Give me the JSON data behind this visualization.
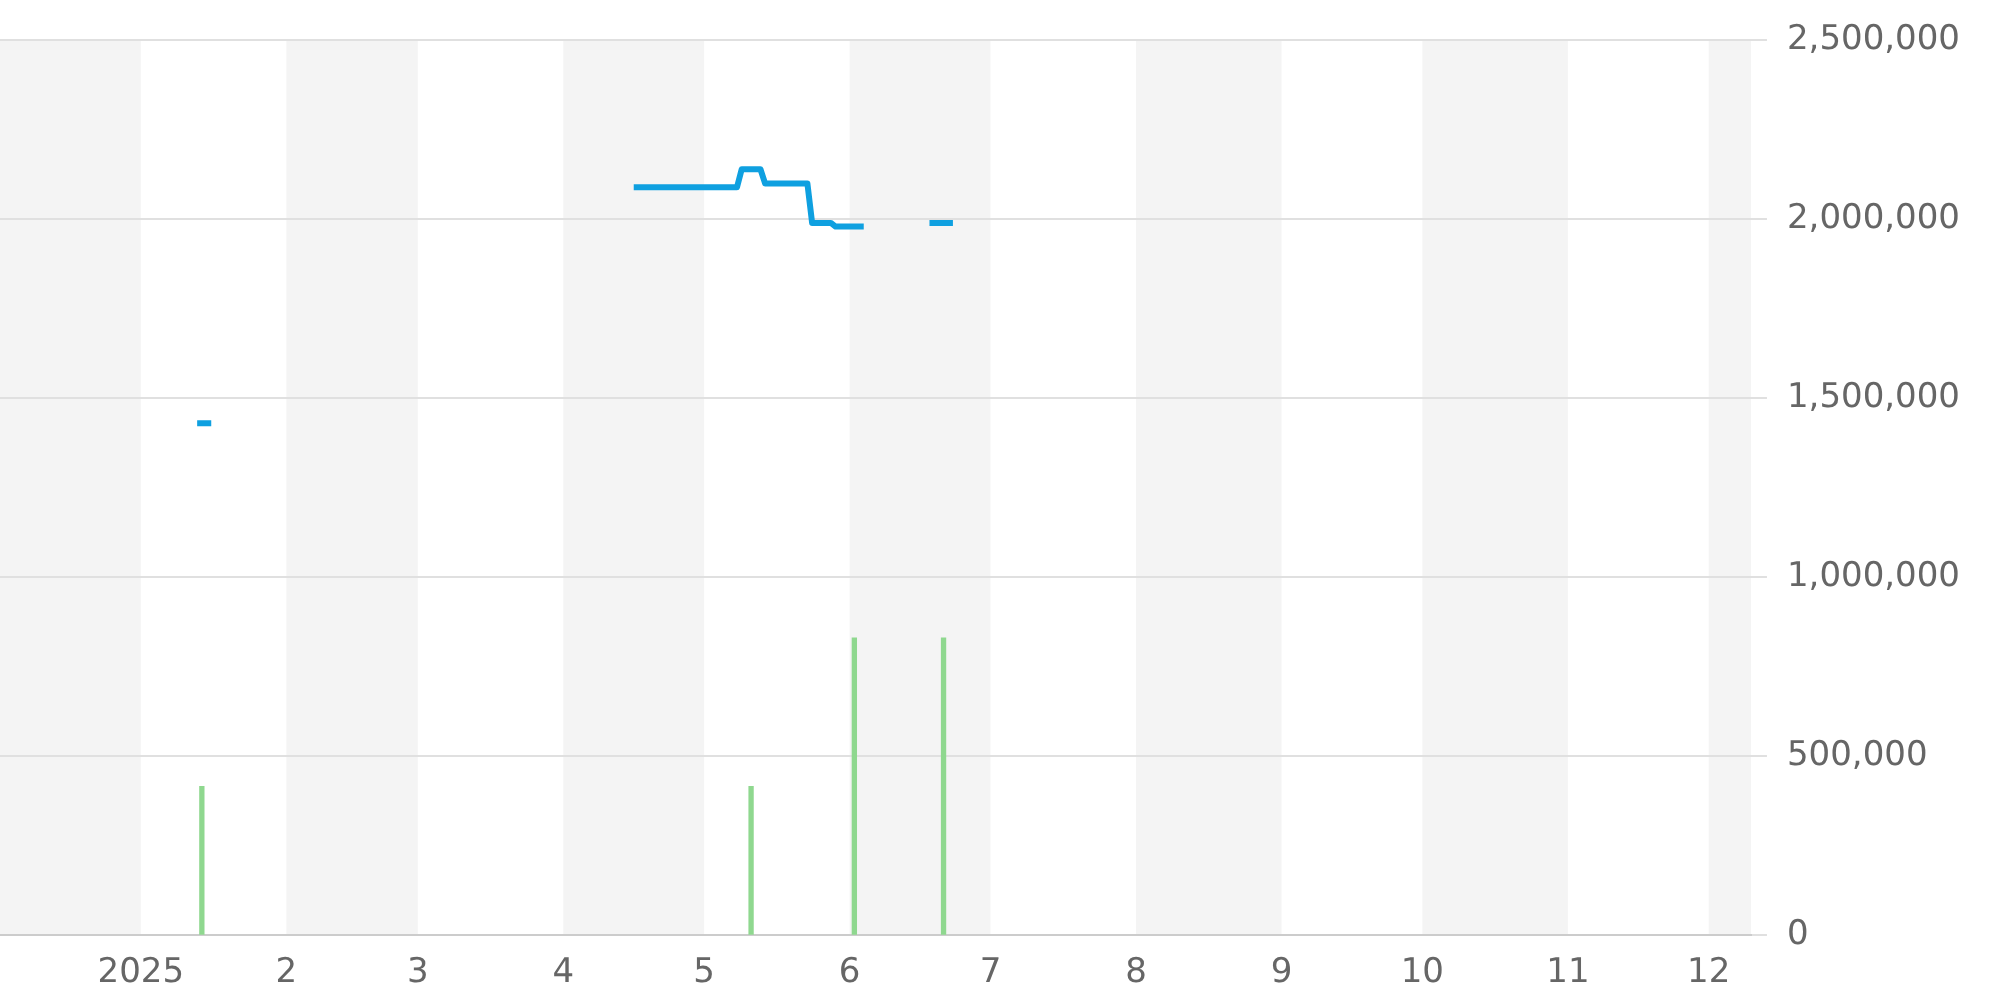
{
  "chart_data": {
    "type": "line",
    "xlim": [
      "2024-12-02",
      "2025-12-10"
    ],
    "ylim": [
      0,
      2500000
    ],
    "xticks": [
      {
        "value": "2025-01-01",
        "label": "2025"
      },
      {
        "value": "2025-02-01",
        "label": "2"
      },
      {
        "value": "2025-03-01",
        "label": "3"
      },
      {
        "value": "2025-04-01",
        "label": "4"
      },
      {
        "value": "2025-05-01",
        "label": "5"
      },
      {
        "value": "2025-06-01",
        "label": "6"
      },
      {
        "value": "2025-07-01",
        "label": "7"
      },
      {
        "value": "2025-08-01",
        "label": "8"
      },
      {
        "value": "2025-09-01",
        "label": "9"
      },
      {
        "value": "2025-10-01",
        "label": "10"
      },
      {
        "value": "2025-11-01",
        "label": "11"
      },
      {
        "value": "2025-12-01",
        "label": "12"
      }
    ],
    "yticks": [
      0,
      {
        "value": 500000,
        "label": "500,000"
      },
      {
        "value": 1000000,
        "label": "1,000,000"
      },
      {
        "value": 1500000,
        "label": "1,500,000"
      },
      {
        "value": 2000000,
        "label": "2,000,000"
      },
      {
        "value": 2500000,
        "label": "2,500,000"
      }
    ],
    "grid": "y",
    "legend": false,
    "marker": "none",
    "bands": [
      {
        "axis": "x",
        "from": "2024-12-02",
        "to": "2025-01-01",
        "color": "#f4f4f4"
      },
      {
        "axis": "x",
        "from": "2025-02-01",
        "to": "2025-03-01",
        "color": "#f4f4f4"
      },
      {
        "axis": "x",
        "from": "2025-04-01",
        "to": "2025-05-01",
        "color": "#f4f4f4"
      },
      {
        "axis": "x",
        "from": "2025-06-01",
        "to": "2025-07-01",
        "color": "#f4f4f4"
      },
      {
        "axis": "x",
        "from": "2025-08-01",
        "to": "2025-09-01",
        "color": "#f4f4f4"
      },
      {
        "axis": "x",
        "from": "2025-10-01",
        "to": "2025-11-01",
        "color": "#f4f4f4"
      },
      {
        "axis": "x",
        "from": "2025-12-01",
        "to": "2025-12-10",
        "color": "#f4f4f4"
      }
    ],
    "series": [
      {
        "color": "#0fa0e0",
        "x": [
          "2025-01-13",
          "2025-01-16",
          "2025-03-01",
          "2025-04-16",
          "2025-05-08",
          "2025-05-09",
          "2025-05-13",
          "2025-05-14",
          "2025-05-23",
          "2025-05-24",
          "2025-05-28",
          "2025-05-29",
          "2025-06-04",
          "2025-06-10",
          "2025-06-18",
          "2025-06-23"
        ],
        "values": [
          1430000,
          1430000,
          null,
          2090000,
          2090000,
          2140000,
          2140000,
          2100000,
          2100000,
          1990000,
          1990000,
          1980000,
          1980000,
          null,
          1990000,
          1990000
        ]
      },
      {
        "type": "bar",
        "color": "#8fd88f",
        "x": [
          "2025-01-14",
          "2025-05-11",
          "2025-06-02",
          "2025-06-21"
        ],
        "values": [
          415000,
          415000,
          830000,
          830000
        ]
      }
    ]
  }
}
